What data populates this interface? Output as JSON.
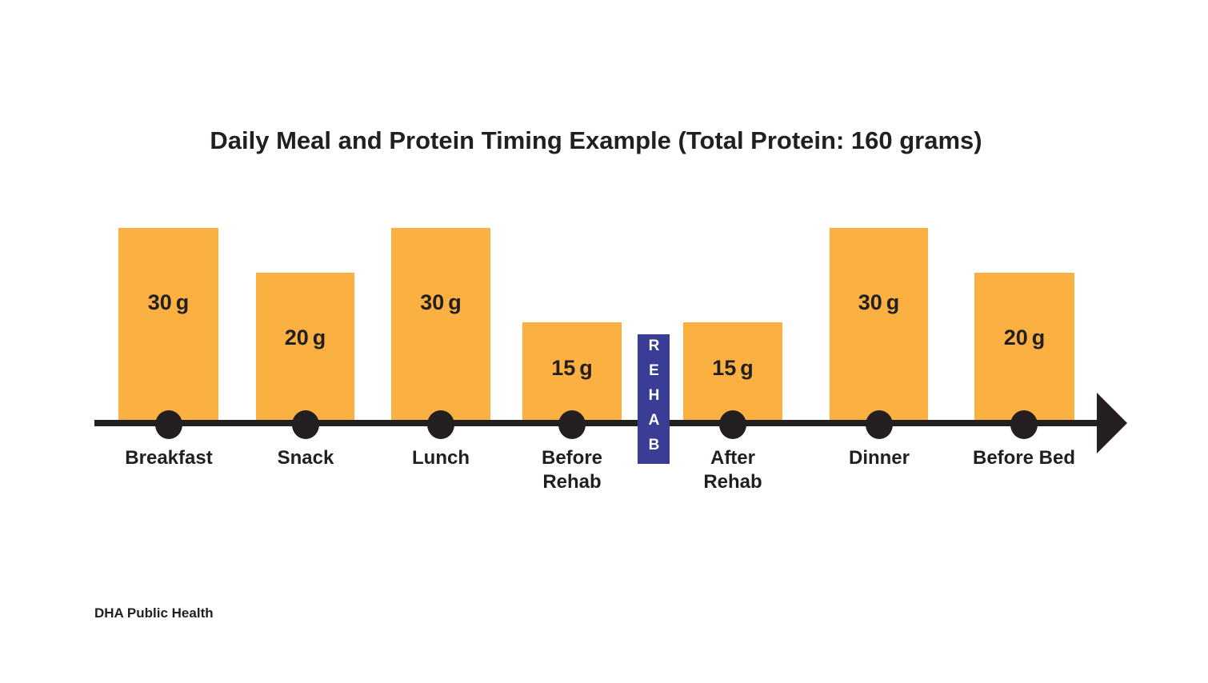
{
  "title": "Daily Meal and Protein Timing Example (Total Protein: 160 grams)",
  "chart_data": {
    "type": "bar",
    "title": "Daily Meal and Protein Timing Example (Total Protein: 160 grams)",
    "categories": [
      "Breakfast",
      "Snack",
      "Lunch",
      "Before Rehab",
      "After Rehab",
      "Dinner",
      "Before Bed"
    ],
    "values": [
      30,
      20,
      30,
      15,
      15,
      30,
      20
    ],
    "unit": "g",
    "total_protein_grams": 160,
    "annotation": {
      "label": "REHAB",
      "position": "between Before Rehab and After Rehab bars, crossing the timeline"
    },
    "axis": "horizontal timeline arrow with a dot marker under each bar; no y-axis, no gridlines, no legend",
    "colors": {
      "bar": "#FBB142",
      "annotation_bg": "#3A3D96",
      "annotation_text": "#FFFFFF",
      "axis": "#231F20",
      "background": "#FFFFFF"
    }
  },
  "meals": [
    {
      "label": "Breakfast",
      "amount": "30",
      "unit": "g"
    },
    {
      "label": "Snack",
      "amount": "20",
      "unit": "g"
    },
    {
      "label": "Lunch",
      "amount": "30",
      "unit": "g"
    },
    {
      "label": "Before\nRehab",
      "amount": "15",
      "unit": "g"
    },
    {
      "label": "After\nRehab",
      "amount": "15",
      "unit": "g"
    },
    {
      "label": "Dinner",
      "amount": "30",
      "unit": "g"
    },
    {
      "label": "Before Bed",
      "amount": "20",
      "unit": "g"
    }
  ],
  "rehab_badge": {
    "label": "REHAB"
  },
  "footer": {
    "credit": "DHA Public Health"
  }
}
